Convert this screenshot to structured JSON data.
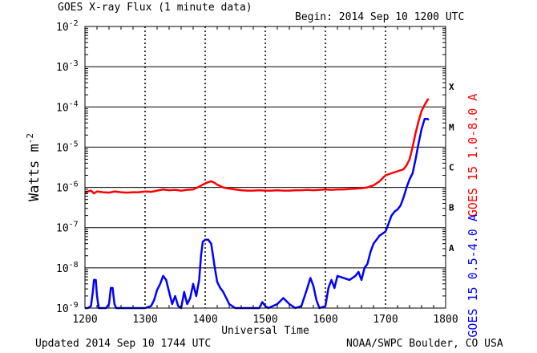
{
  "header": {
    "title": "GOES X-ray Flux (1 minute data)",
    "begin": "Begin: 2014 Sep 10 1200 UTC"
  },
  "footer": {
    "updated": "Updated 2014 Sep 10 1744 UTC",
    "credit": "NOAA/SWPC Boulder, CO USA"
  },
  "colors": {
    "long_channel": "#ff0000",
    "short_channel": "#0000ff",
    "grid": "#000000"
  },
  "chart_data": {
    "type": "line",
    "title": "GOES X-ray Flux (1 minute data)",
    "xlabel": "Universal Time",
    "ylabel": "Watts m",
    "ylabel_exponent": "-2",
    "ylabel_full": "Watts m-2",
    "x_scale": "linear",
    "y_scale": "log10",
    "xlim": [
      1200,
      1800
    ],
    "ylim": [
      1e-09,
      0.01
    ],
    "x_ticks": [
      {
        "value": 1200,
        "label": "1200"
      },
      {
        "value": 1300,
        "label": "1300"
      },
      {
        "value": 1400,
        "label": "1400"
      },
      {
        "value": 1500,
        "label": "1500"
      },
      {
        "value": 1600,
        "label": "1600"
      },
      {
        "value": 1700,
        "label": "1700"
      },
      {
        "value": 1800,
        "label": "1800"
      }
    ],
    "y_ticks": [
      {
        "exp": -9,
        "base": "10",
        "sup": "-9"
      },
      {
        "exp": -8,
        "base": "10",
        "sup": "-8"
      },
      {
        "exp": -7,
        "base": "10",
        "sup": "-7"
      },
      {
        "exp": -6,
        "base": "10",
        "sup": "-6"
      },
      {
        "exp": -5,
        "base": "10",
        "sup": "-5"
      },
      {
        "exp": -4,
        "base": "10",
        "sup": "-4"
      },
      {
        "exp": -3,
        "base": "10",
        "sup": "-3"
      },
      {
        "exp": -2,
        "base": "10",
        "sup": "-2"
      }
    ],
    "flare_classes": [
      {
        "label": "A",
        "exp": -8
      },
      {
        "label": "B",
        "exp": -7
      },
      {
        "label": "C",
        "exp": -6
      },
      {
        "label": "M",
        "exp": -5
      },
      {
        "label": "X",
        "exp": -4
      }
    ],
    "series": [
      {
        "name": "GOES 15 1.0-8.0 A",
        "color": "#ff0000",
        "points": [
          [
            1200,
            -6.15
          ],
          [
            1205,
            -6.1
          ],
          [
            1210,
            -6.08
          ],
          [
            1215,
            -6.15
          ],
          [
            1220,
            -6.1
          ],
          [
            1230,
            -6.12
          ],
          [
            1240,
            -6.13
          ],
          [
            1250,
            -6.1
          ],
          [
            1260,
            -6.12
          ],
          [
            1270,
            -6.13
          ],
          [
            1280,
            -6.12
          ],
          [
            1290,
            -6.12
          ],
          [
            1300,
            -6.1
          ],
          [
            1310,
            -6.11
          ],
          [
            1320,
            -6.08
          ],
          [
            1330,
            -6.05
          ],
          [
            1340,
            -6.07
          ],
          [
            1350,
            -6.06
          ],
          [
            1360,
            -6.08
          ],
          [
            1370,
            -6.06
          ],
          [
            1380,
            -6.05
          ],
          [
            1390,
            -5.98
          ],
          [
            1400,
            -5.9
          ],
          [
            1405,
            -5.87
          ],
          [
            1410,
            -5.85
          ],
          [
            1415,
            -5.88
          ],
          [
            1420,
            -5.93
          ],
          [
            1430,
            -6.0
          ],
          [
            1440,
            -6.03
          ],
          [
            1450,
            -6.05
          ],
          [
            1460,
            -6.07
          ],
          [
            1470,
            -6.08
          ],
          [
            1480,
            -6.08
          ],
          [
            1490,
            -6.07
          ],
          [
            1500,
            -6.08
          ],
          [
            1510,
            -6.08
          ],
          [
            1520,
            -6.07
          ],
          [
            1530,
            -6.08
          ],
          [
            1540,
            -6.08
          ],
          [
            1550,
            -6.07
          ],
          [
            1560,
            -6.07
          ],
          [
            1570,
            -6.06
          ],
          [
            1580,
            -6.07
          ],
          [
            1590,
            -6.06
          ],
          [
            1600,
            -6.05
          ],
          [
            1610,
            -6.06
          ],
          [
            1620,
            -6.05
          ],
          [
            1630,
            -6.05
          ],
          [
            1640,
            -6.04
          ],
          [
            1650,
            -6.03
          ],
          [
            1660,
            -6.02
          ],
          [
            1670,
            -6.0
          ],
          [
            1680,
            -5.95
          ],
          [
            1690,
            -5.85
          ],
          [
            1700,
            -5.7
          ],
          [
            1710,
            -5.65
          ],
          [
            1720,
            -5.6
          ],
          [
            1730,
            -5.55
          ],
          [
            1735,
            -5.45
          ],
          [
            1740,
            -5.3
          ],
          [
            1745,
            -5.0
          ],
          [
            1750,
            -4.65
          ],
          [
            1755,
            -4.35
          ],
          [
            1760,
            -4.1
          ],
          [
            1765,
            -3.95
          ],
          [
            1770,
            -3.82
          ],
          [
            1772,
            -3.8
          ]
        ]
      },
      {
        "name": "GOES 15 0.5-4.0 A",
        "color": "#0000ff",
        "points": [
          [
            1200,
            -9.0
          ],
          [
            1205,
            -9.0
          ],
          [
            1210,
            -8.95
          ],
          [
            1213,
            -8.6
          ],
          [
            1215,
            -8.3
          ],
          [
            1218,
            -8.3
          ],
          [
            1220,
            -8.7
          ],
          [
            1223,
            -9.0
          ],
          [
            1230,
            -9.0
          ],
          [
            1235,
            -9.0
          ],
          [
            1240,
            -8.9
          ],
          [
            1243,
            -8.5
          ],
          [
            1246,
            -8.5
          ],
          [
            1249,
            -8.9
          ],
          [
            1252,
            -9.0
          ],
          [
            1270,
            -9.0
          ],
          [
            1290,
            -9.0
          ],
          [
            1300,
            -9.0
          ],
          [
            1310,
            -8.95
          ],
          [
            1315,
            -8.8
          ],
          [
            1320,
            -8.55
          ],
          [
            1325,
            -8.4
          ],
          [
            1330,
            -8.2
          ],
          [
            1335,
            -8.3
          ],
          [
            1340,
            -8.6
          ],
          [
            1345,
            -8.9
          ],
          [
            1350,
            -8.7
          ],
          [
            1355,
            -8.95
          ],
          [
            1360,
            -9.0
          ],
          [
            1365,
            -8.6
          ],
          [
            1370,
            -8.9
          ],
          [
            1375,
            -8.75
          ],
          [
            1380,
            -8.4
          ],
          [
            1385,
            -8.7
          ],
          [
            1390,
            -8.3
          ],
          [
            1393,
            -7.7
          ],
          [
            1396,
            -7.35
          ],
          [
            1400,
            -7.3
          ],
          [
            1405,
            -7.3
          ],
          [
            1410,
            -7.4
          ],
          [
            1413,
            -7.7
          ],
          [
            1416,
            -8.0
          ],
          [
            1420,
            -8.35
          ],
          [
            1425,
            -8.5
          ],
          [
            1430,
            -8.6
          ],
          [
            1435,
            -8.75
          ],
          [
            1440,
            -8.9
          ],
          [
            1450,
            -9.0
          ],
          [
            1460,
            -9.0
          ],
          [
            1470,
            -9.0
          ],
          [
            1480,
            -9.0
          ],
          [
            1490,
            -9.0
          ],
          [
            1495,
            -8.85
          ],
          [
            1500,
            -8.95
          ],
          [
            1505,
            -9.0
          ],
          [
            1520,
            -8.9
          ],
          [
            1530,
            -8.75
          ],
          [
            1540,
            -8.9
          ],
          [
            1550,
            -9.0
          ],
          [
            1560,
            -8.95
          ],
          [
            1570,
            -8.5
          ],
          [
            1575,
            -8.25
          ],
          [
            1580,
            -8.45
          ],
          [
            1585,
            -8.8
          ],
          [
            1590,
            -9.0
          ],
          [
            1600,
            -8.95
          ],
          [
            1605,
            -8.5
          ],
          [
            1610,
            -8.3
          ],
          [
            1615,
            -8.5
          ],
          [
            1620,
            -8.2
          ],
          [
            1630,
            -8.25
          ],
          [
            1640,
            -8.3
          ],
          [
            1650,
            -8.2
          ],
          [
            1655,
            -8.1
          ],
          [
            1660,
            -8.3
          ],
          [
            1665,
            -8.0
          ],
          [
            1670,
            -7.9
          ],
          [
            1675,
            -7.6
          ],
          [
            1680,
            -7.4
          ],
          [
            1685,
            -7.3
          ],
          [
            1690,
            -7.2
          ],
          [
            1695,
            -7.15
          ],
          [
            1700,
            -7.1
          ],
          [
            1705,
            -6.9
          ],
          [
            1710,
            -6.7
          ],
          [
            1715,
            -6.6
          ],
          [
            1720,
            -6.55
          ],
          [
            1725,
            -6.45
          ],
          [
            1730,
            -6.25
          ],
          [
            1735,
            -6.0
          ],
          [
            1740,
            -5.8
          ],
          [
            1745,
            -5.65
          ],
          [
            1750,
            -5.3
          ],
          [
            1755,
            -4.9
          ],
          [
            1760,
            -4.55
          ],
          [
            1765,
            -4.3
          ],
          [
            1770,
            -4.3
          ],
          [
            1772,
            -4.32
          ]
        ]
      }
    ]
  }
}
